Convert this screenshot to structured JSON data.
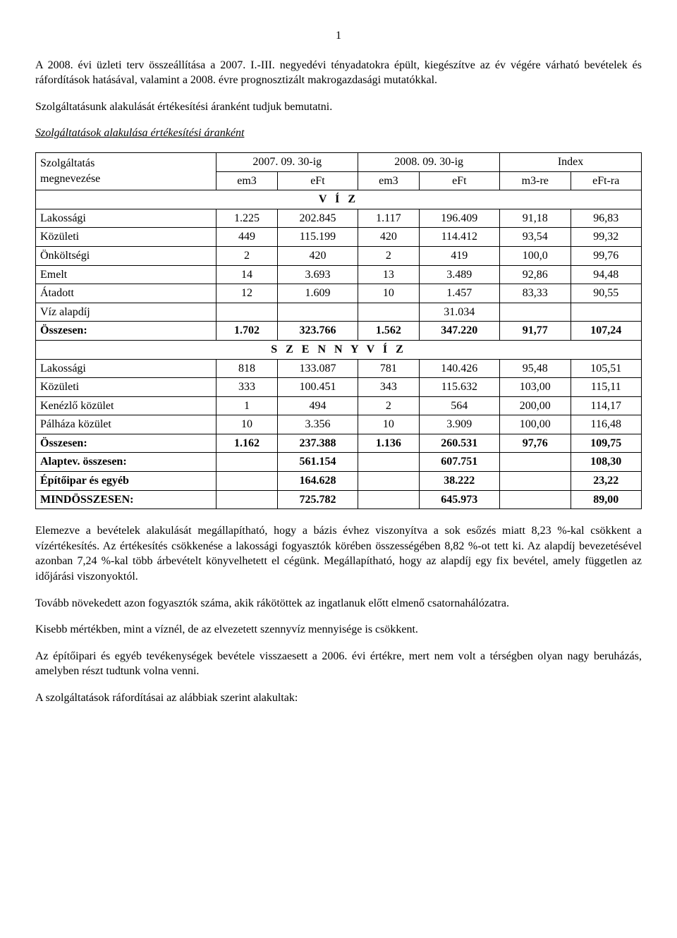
{
  "page_number": "1",
  "paragraphs": {
    "p1": "A 2008. évi üzleti terv összeállítása a 2007. I.-III. negyedévi tényadatokra épült, kiegészítve az év végére várható bevételek és ráfordítások hatásával, valamint a 2008. évre prognosztizált makrogazdasági mutatókkal.",
    "p2": "Szolgáltatásunk alakulását értékesítési áranként tudjuk bemutatni.",
    "p3": "Szolgáltatások alakulása értékesítési áranként",
    "p4": "Elemezve a bevételek alakulását megállapítható, hogy a bázis évhez viszonyítva a sok esőzés miatt 8,23 %-kal csökkent a vízértékesítés. Az értékesítés csökkenése a lakossági fogyasztók körében összességében 8,82 %-ot tett ki. Az alapdíj bevezetésével azonban 7,24 %-kal több árbevételt könyvelhetett el cégünk. Megállapítható, hogy az alapdíj egy fix bevétel, amely független az időjárási viszonyoktól.",
    "p5": "Tovább növekedett azon fogyasztók száma, akik rákötöttek az ingatlanuk előtt elmenő csatornahálózatra.",
    "p6": "Kisebb mértékben, mint a víznél, de az elvezetett szennyvíz mennyisége is csökkent.",
    "p7": "Az építőipari és egyéb tevékenységek bevétele visszaesett a 2006. évi értékre, mert nem volt a térségben olyan nagy beruházás, amelyben részt tudtunk volna venni.",
    "p8": "A szolgáltatások ráfordításai az alábbiak szerint alakultak:"
  },
  "table": {
    "header": {
      "col1_line1": "Szolgáltatás",
      "col1_line2": "megnevezése",
      "period1": "2007. 09. 30-ig",
      "period2": "2008. 09. 30-ig",
      "index": "Index",
      "sub_em3": "em3",
      "sub_eft": "eFt",
      "sub_m3re": "m3-re",
      "sub_eftra": "eFt-ra"
    },
    "section1": "V Í Z",
    "section2": "S Z E N N Y V Í Z",
    "rows_viz": [
      {
        "name": "Lakossági",
        "c1": "1.225",
        "c2": "202.845",
        "c3": "1.117",
        "c4": "196.409",
        "c5": "91,18",
        "c6": "96,83",
        "bold": false
      },
      {
        "name": "Közületi",
        "c1": "449",
        "c2": "115.199",
        "c3": "420",
        "c4": "114.412",
        "c5": "93,54",
        "c6": "99,32",
        "bold": false
      },
      {
        "name": "Önköltségi",
        "c1": "2",
        "c2": "420",
        "c3": "2",
        "c4": "419",
        "c5": "100,0",
        "c6": "99,76",
        "bold": false
      },
      {
        "name": "Emelt",
        "c1": "14",
        "c2": "3.693",
        "c3": "13",
        "c4": "3.489",
        "c5": "92,86",
        "c6": "94,48",
        "bold": false
      },
      {
        "name": "Átadott",
        "c1": "12",
        "c2": "1.609",
        "c3": "10",
        "c4": "1.457",
        "c5": "83,33",
        "c6": "90,55",
        "bold": false
      },
      {
        "name": "Víz alapdíj",
        "c1": "",
        "c2": "",
        "c3": "",
        "c4": "31.034",
        "c5": "",
        "c6": "",
        "bold": false
      },
      {
        "name": "Összesen:",
        "c1": "1.702",
        "c2": "323.766",
        "c3": "1.562",
        "c4": "347.220",
        "c5": "91,77",
        "c6": "107,24",
        "bold": true
      }
    ],
    "rows_szv": [
      {
        "name": "Lakossági",
        "c1": "818",
        "c2": "133.087",
        "c3": "781",
        "c4": "140.426",
        "c5": "95,48",
        "c6": "105,51",
        "bold": false
      },
      {
        "name": "Közületi",
        "c1": "333",
        "c2": "100.451",
        "c3": "343",
        "c4": "115.632",
        "c5": "103,00",
        "c6": "115,11",
        "bold": false
      },
      {
        "name": "Kenézlő közület",
        "c1": "1",
        "c2": "494",
        "c3": "2",
        "c4": "564",
        "c5": "200,00",
        "c6": "114,17",
        "bold": false
      },
      {
        "name": "Pálháza közület",
        "c1": "10",
        "c2": "3.356",
        "c3": "10",
        "c4": "3.909",
        "c5": "100,00",
        "c6": "116,48",
        "bold": false
      },
      {
        "name": "Összesen:",
        "c1": "1.162",
        "c2": "237.388",
        "c3": "1.136",
        "c4": "260.531",
        "c5": "97,76",
        "c6": "109,75",
        "bold": true
      },
      {
        "name": "Alaptev. összesen:",
        "c1": "",
        "c2": "561.154",
        "c3": "",
        "c4": "607.751",
        "c5": "",
        "c6": "108,30",
        "bold": true
      },
      {
        "name": "Építőipar és egyéb",
        "c1": "",
        "c2": "164.628",
        "c3": "",
        "c4": "38.222",
        "c5": "",
        "c6": "23,22",
        "bold": true
      },
      {
        "name": "MINDÖSSZESEN:",
        "c1": "",
        "c2": "725.782",
        "c3": "",
        "c4": "645.973",
        "c5": "",
        "c6": "89,00",
        "bold": true
      }
    ]
  }
}
